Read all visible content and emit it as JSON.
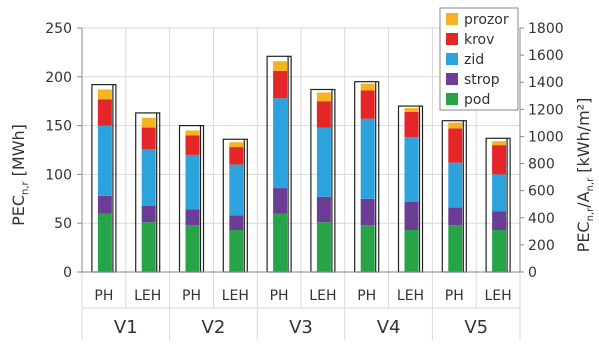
{
  "chart_data": {
    "type": "bar",
    "stacked": true,
    "grid": true,
    "legend_position": "top-right",
    "y_left": {
      "label_main": "PEC",
      "label_sub": "n,r",
      "label_unit": "[MWh]",
      "min": 0,
      "max": 250,
      "ticks": [
        0,
        50,
        100,
        150,
        200,
        250
      ]
    },
    "y_right": {
      "label_main": "PEC",
      "label_sub1": "n,r",
      "label_mid": "/A",
      "label_sub2": "n,r",
      "label_unit": "[kWh/m²]",
      "min": 0,
      "max": 1800,
      "ticks": [
        0,
        200,
        400,
        600,
        800,
        1000,
        1200,
        1400,
        1600,
        1800
      ]
    },
    "groups": [
      "V1",
      "V2",
      "V3",
      "V4",
      "V5"
    ],
    "sub_categories": [
      "PH",
      "LEH"
    ],
    "series": [
      {
        "name": "prozor",
        "color": "#f5b324"
      },
      {
        "name": "krov",
        "color": "#e52629"
      },
      {
        "name": "zid",
        "color": "#2ca3dc"
      },
      {
        "name": "strop",
        "color": "#6b3d94"
      },
      {
        "name": "pod",
        "color": "#27a348"
      }
    ],
    "bars": [
      {
        "group": "V1",
        "sub": "PH",
        "pod": 60,
        "strop": 78,
        "zid": 150,
        "krov": 177,
        "prozor": 187,
        "total_left": 192,
        "total_right": 1380
      },
      {
        "group": "V1",
        "sub": "LEH",
        "pod": 51,
        "strop": 68,
        "zid": 126,
        "krov": 148,
        "prozor": 158,
        "total_left": 163,
        "total_right": 1170
      },
      {
        "group": "V2",
        "sub": "PH",
        "pod": 48,
        "strop": 64,
        "zid": 120,
        "krov": 140,
        "prozor": 145,
        "total_left": 150,
        "total_right": 1080
      },
      {
        "group": "V2",
        "sub": "LEH",
        "pod": 43,
        "strop": 58,
        "zid": 110,
        "krov": 128,
        "prozor": 133,
        "total_left": 136,
        "total_right": 980
      },
      {
        "group": "V3",
        "sub": "PH",
        "pod": 60,
        "strop": 86,
        "zid": 178,
        "krov": 206,
        "prozor": 216,
        "total_left": 221,
        "total_right": 1590
      },
      {
        "group": "V3",
        "sub": "LEH",
        "pod": 51,
        "strop": 77,
        "zid": 148,
        "krov": 175,
        "prozor": 184,
        "total_left": 187,
        "total_right": 1350
      },
      {
        "group": "V4",
        "sub": "PH",
        "pod": 48,
        "strop": 75,
        "zid": 157,
        "krov": 186,
        "prozor": 193,
        "total_left": 195,
        "total_right": 1400
      },
      {
        "group": "V4",
        "sub": "LEH",
        "pod": 43,
        "strop": 72,
        "zid": 138,
        "krov": 164,
        "prozor": 168,
        "total_left": 170,
        "total_right": 1225
      },
      {
        "group": "V5",
        "sub": "PH",
        "pod": 48,
        "strop": 66,
        "zid": 112,
        "krov": 147,
        "prozor": 153,
        "total_left": 155,
        "total_right": 1120
      },
      {
        "group": "V5",
        "sub": "LEH",
        "pod": 43,
        "strop": 62,
        "zid": 100,
        "krov": 130,
        "prozor": 134,
        "total_left": 137,
        "total_right": 985
      }
    ]
  }
}
